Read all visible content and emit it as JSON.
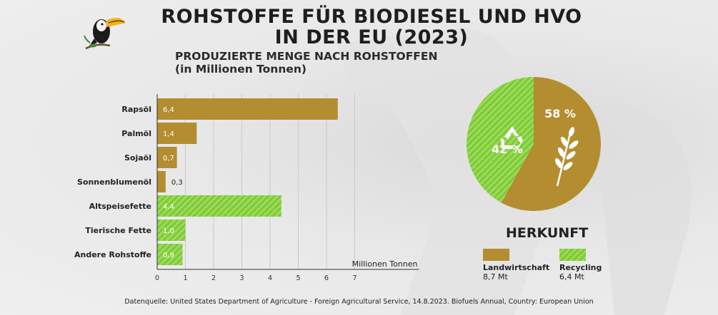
{
  "title_line1": "ROHSTOFFE FÜR BIODIESEL UND HVO",
  "title_line2": "IN DER EU (2023)",
  "subtitle_line1": "PRODUZIERTE MENGE NACH ROHSTOFFEN",
  "subtitle_line2": "(in Millionen Tonnen)",
  "chart_data": [
    {
      "type": "bar",
      "orientation": "horizontal",
      "title": "PRODUZIERTE MENGE NACH ROHSTOFFEN (in Millionen Tonnen)",
      "xlabel": "Millionen Tonnen",
      "ylabel": "",
      "xlim": [
        0,
        7
      ],
      "xticks": [
        0,
        1,
        2,
        3,
        4,
        5,
        6,
        7
      ],
      "grid": true,
      "categories": [
        "Rapsöl",
        "Palmöl",
        "Sojaöl",
        "Sonnenblumenöl",
        "Altspeisefette",
        "Tierische Fette",
        "Andere Rohstoffe"
      ],
      "values": [
        6.4,
        1.4,
        0.7,
        0.3,
        4.4,
        1.0,
        0.9
      ],
      "value_labels": [
        "6,4",
        "1,4",
        "0,7",
        "0,3",
        "4,4",
        "1,0",
        "0,9"
      ],
      "groups": [
        "Landwirtschaft",
        "Landwirtschaft",
        "Landwirtschaft",
        "Landwirtschaft",
        "Recycling",
        "Recycling",
        "Recycling"
      ]
    },
    {
      "type": "pie",
      "title": "HERKUNFT",
      "slices": [
        {
          "name": "Landwirtschaft",
          "percent": 58,
          "label": "58 %",
          "value_label": "8,7 Mt",
          "color": "#b38d2f",
          "icon": "wheat-icon"
        },
        {
          "name": "Recycling",
          "percent": 42,
          "label": "42 %",
          "value_label": "6,4 Mt",
          "color": "#7ec83b",
          "icon": "recycle-icon"
        }
      ],
      "legend_position": "bottom"
    }
  ],
  "colors": {
    "landwirtschaft": "#b38d2f",
    "recycling": "#7ec83b",
    "recycling_stripe": "#9bdc55"
  },
  "footer": "Datenquelle: United States Department of Agriculture - Foreign Agricultural Service, 14.8.2023. Biofuels Annual, Country: European Union",
  "logo_icon": "toucan-icon"
}
